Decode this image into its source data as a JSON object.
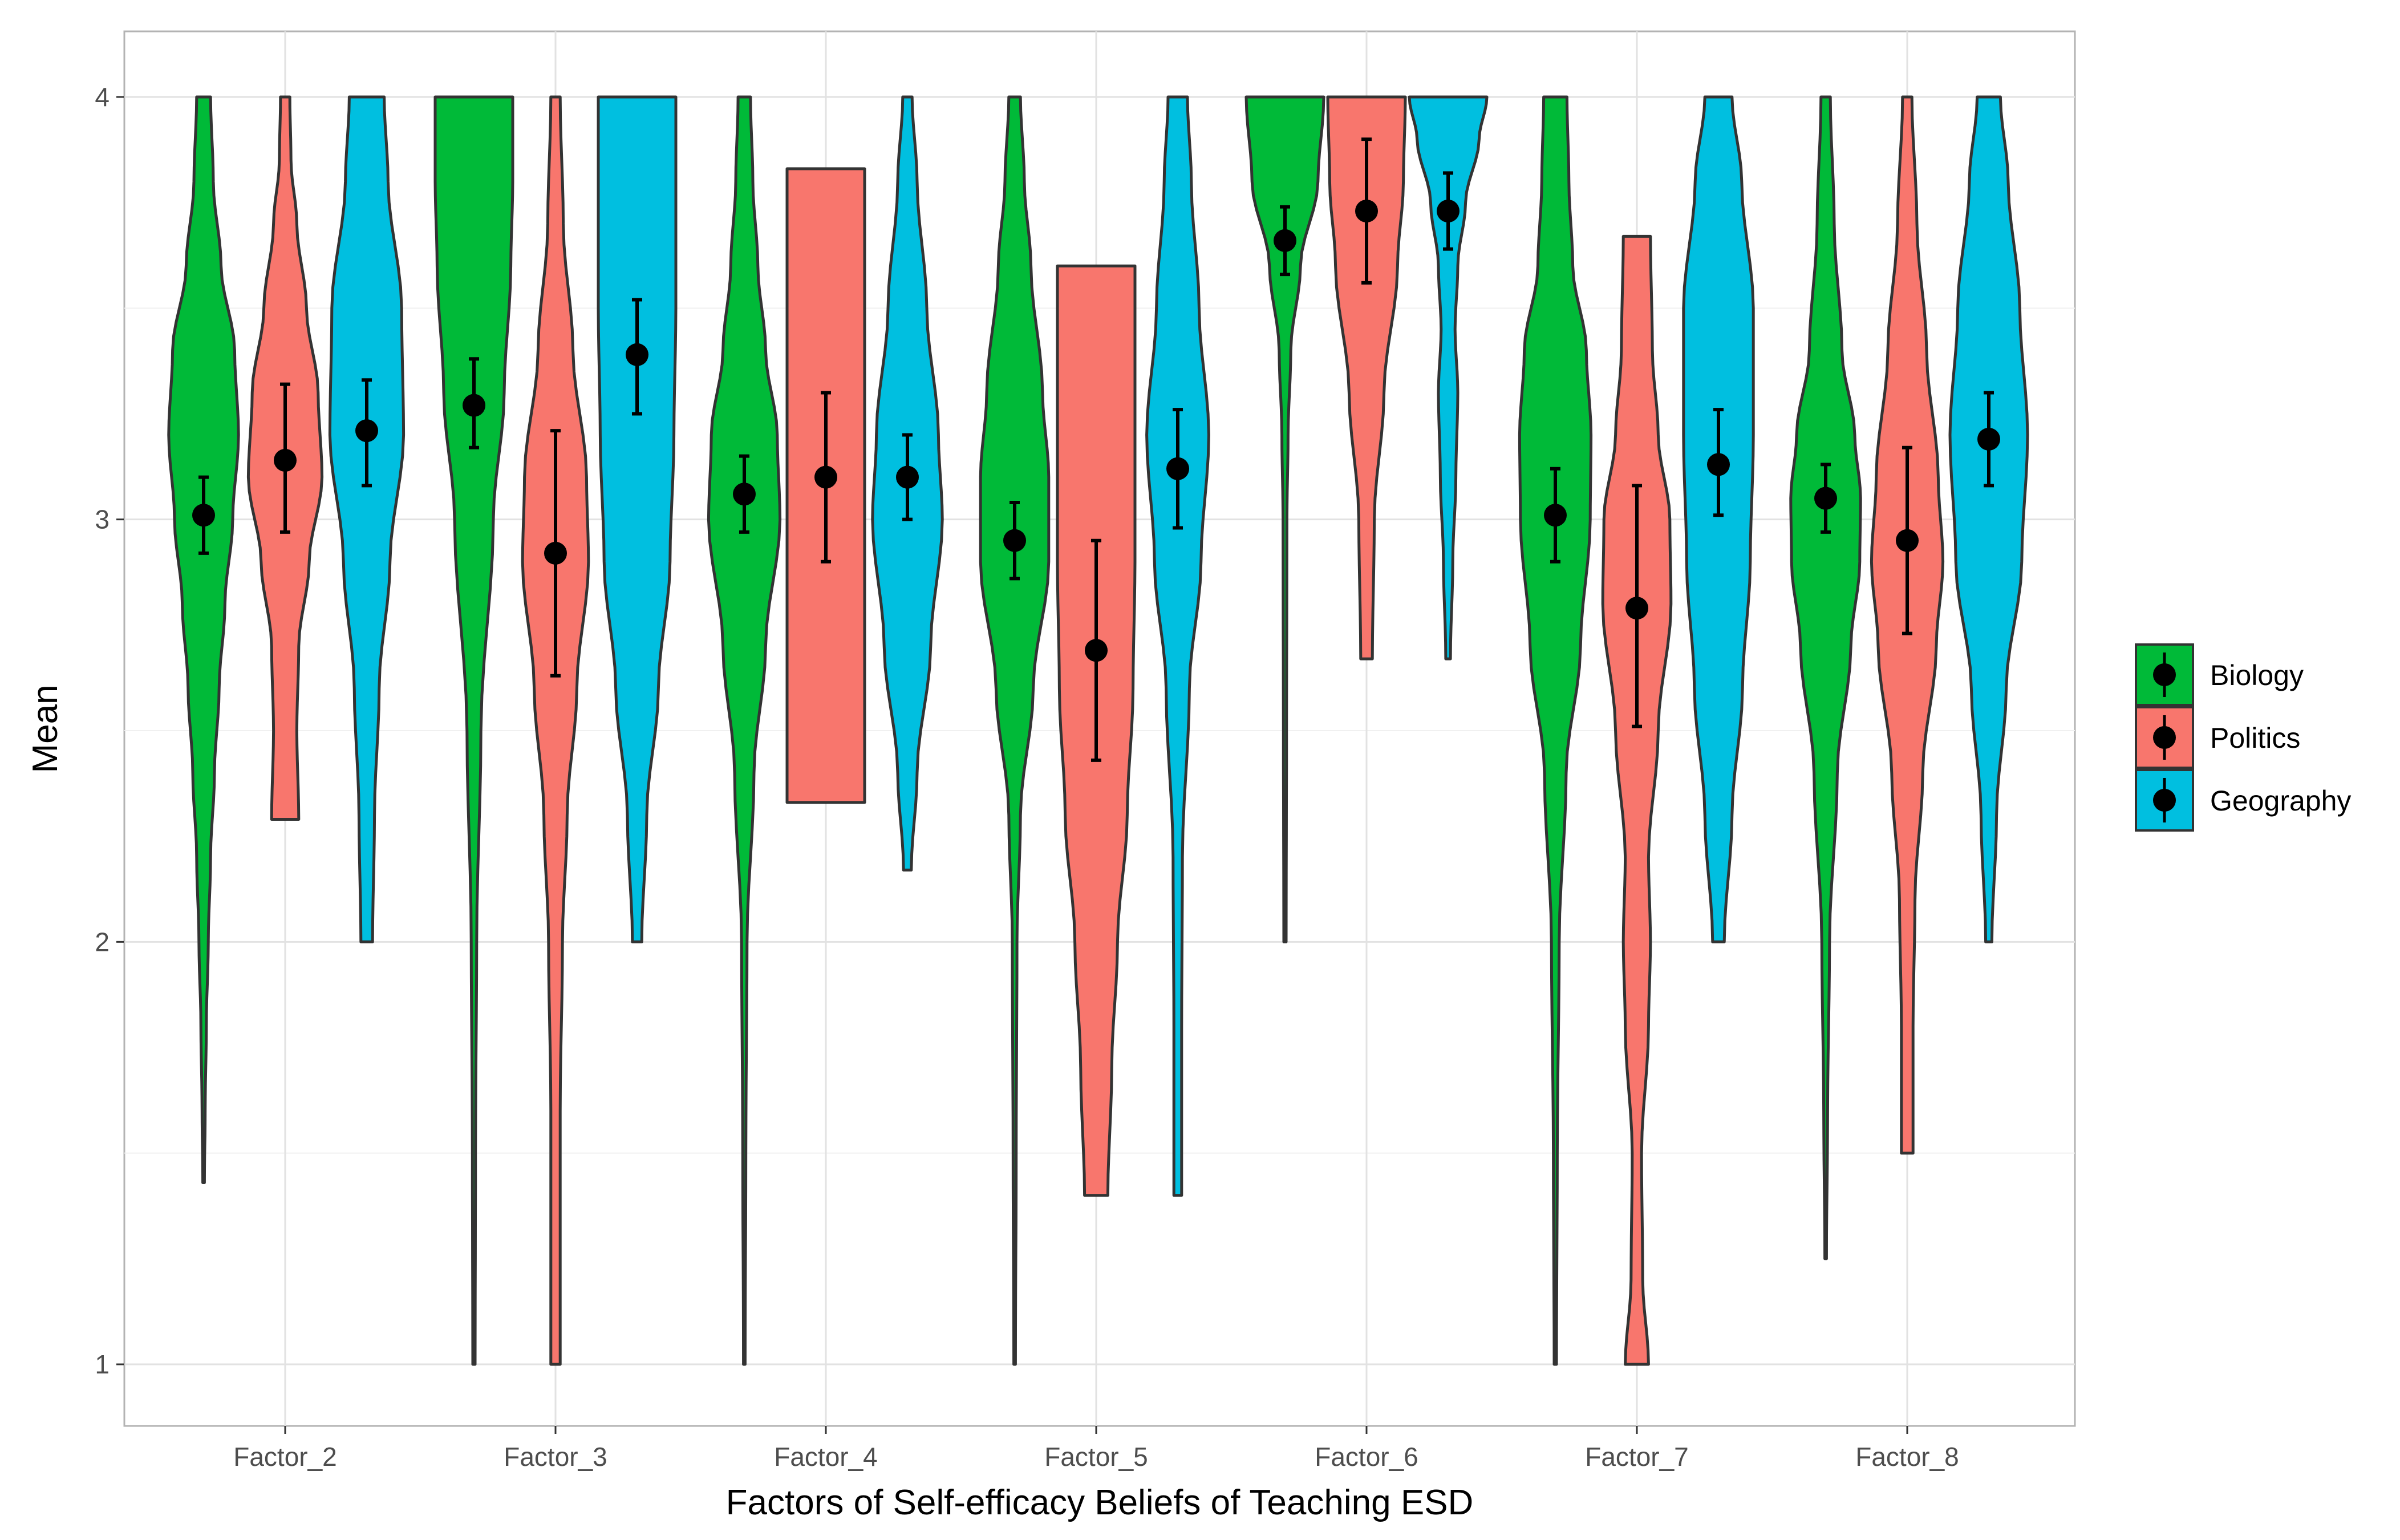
{
  "chart_data": {
    "type": "violin",
    "xlabel": "Factors of Self-efficacy Beliefs of Teaching ESD",
    "ylabel": "Mean",
    "ylim": [
      0.85,
      4.15
    ],
    "yticks": [
      1,
      2,
      3,
      4
    ],
    "categories": [
      "Factor_2",
      "Factor_3",
      "Factor_4",
      "Factor_5",
      "Factor_6",
      "Factor_7",
      "Factor_8"
    ],
    "grid": true,
    "legend_position": "right",
    "series": [
      {
        "name": "Biology",
        "color": "#00BA38",
        "mean": [
          3.01,
          3.27,
          3.06,
          2.95,
          3.66,
          3.01,
          3.05
        ],
        "ci_low": [
          2.92,
          3.17,
          2.97,
          2.86,
          3.58,
          2.9,
          2.97
        ],
        "ci_high": [
          3.1,
          3.38,
          3.15,
          3.04,
          3.74,
          3.12,
          3.13
        ],
        "min": [
          1.43,
          1.0,
          1.0,
          1.0,
          2.0,
          1.0,
          1.25
        ],
        "max": [
          4.0,
          4.0,
          4.0,
          4.0,
          4.0,
          4.0,
          4.0
        ],
        "violins": [
          [
            [
              1.43,
              0.02
            ],
            [
              1.6,
              0.04
            ],
            [
              1.8,
              0.07
            ],
            [
              2.0,
              0.12
            ],
            [
              2.2,
              0.18
            ],
            [
              2.4,
              0.28
            ],
            [
              2.6,
              0.4
            ],
            [
              2.8,
              0.55
            ],
            [
              3.0,
              0.75
            ],
            [
              3.2,
              0.9
            ],
            [
              3.4,
              0.8
            ],
            [
              3.6,
              0.45
            ],
            [
              3.8,
              0.25
            ],
            [
              4.0,
              0.18
            ]
          ],
          [
            [
              1.0,
              0.03
            ],
            [
              1.5,
              0.04
            ],
            [
              2.0,
              0.07
            ],
            [
              2.5,
              0.18
            ],
            [
              3.0,
              0.5
            ],
            [
              3.3,
              0.78
            ],
            [
              3.6,
              0.95
            ],
            [
              3.8,
              1.0
            ],
            [
              4.0,
              1.0
            ]
          ],
          [
            [
              1.0,
              0.02
            ],
            [
              1.5,
              0.04
            ],
            [
              2.0,
              0.07
            ],
            [
              2.4,
              0.25
            ],
            [
              2.7,
              0.55
            ],
            [
              3.0,
              0.92
            ],
            [
              3.2,
              0.85
            ],
            [
              3.4,
              0.55
            ],
            [
              3.6,
              0.35
            ],
            [
              3.8,
              0.22
            ],
            [
              4.0,
              0.16
            ]
          ],
          [
            [
              1.0,
              0.02
            ],
            [
              1.5,
              0.04
            ],
            [
              2.0,
              0.06
            ],
            [
              2.3,
              0.15
            ],
            [
              2.6,
              0.48
            ],
            [
              2.9,
              0.88
            ],
            [
              3.1,
              0.88
            ],
            [
              3.3,
              0.72
            ],
            [
              3.6,
              0.42
            ],
            [
              3.8,
              0.25
            ],
            [
              4.0,
              0.15
            ]
          ],
          [
            [
              2.0,
              0.03
            ],
            [
              2.5,
              0.04
            ],
            [
              3.0,
              0.05
            ],
            [
              3.2,
              0.08
            ],
            [
              3.4,
              0.15
            ],
            [
              3.6,
              0.4
            ],
            [
              3.8,
              0.85
            ],
            [
              4.0,
              1.0
            ]
          ],
          [
            [
              1.0,
              0.03
            ],
            [
              1.5,
              0.05
            ],
            [
              2.0,
              0.1
            ],
            [
              2.4,
              0.28
            ],
            [
              2.7,
              0.65
            ],
            [
              3.0,
              0.9
            ],
            [
              3.2,
              0.92
            ],
            [
              3.4,
              0.8
            ],
            [
              3.6,
              0.45
            ],
            [
              3.8,
              0.35
            ],
            [
              4.0,
              0.3
            ]
          ],
          [
            [
              1.25,
              0.02
            ],
            [
              1.6,
              0.05
            ],
            [
              2.0,
              0.1
            ],
            [
              2.4,
              0.3
            ],
            [
              2.7,
              0.65
            ],
            [
              2.9,
              0.88
            ],
            [
              3.05,
              0.9
            ],
            [
              3.2,
              0.75
            ],
            [
              3.4,
              0.42
            ],
            [
              3.7,
              0.22
            ],
            [
              4.0,
              0.12
            ]
          ]
        ]
      },
      {
        "name": "Politics",
        "color": "#F8766D",
        "mean": [
          3.14,
          2.92,
          3.1,
          2.69,
          3.73,
          2.79,
          2.95
        ],
        "ci_low": [
          2.97,
          2.63,
          2.9,
          2.43,
          3.56,
          2.51,
          2.73
        ],
        "ci_high": [
          3.32,
          3.21,
          3.3,
          2.95,
          3.9,
          3.08,
          3.17
        ],
        "min": [
          2.29,
          1.0,
          2.33,
          1.4,
          2.67,
          1.0,
          1.5
        ],
        "max": [
          4.0,
          4.0,
          3.83,
          3.6,
          4.0,
          3.67,
          4.0
        ],
        "violins": [
          [
            [
              2.29,
              0.35
            ],
            [
              2.5,
              0.3
            ],
            [
              2.7,
              0.35
            ],
            [
              2.9,
              0.62
            ],
            [
              3.1,
              0.95
            ],
            [
              3.3,
              0.85
            ],
            [
              3.5,
              0.55
            ],
            [
              3.7,
              0.3
            ],
            [
              3.85,
              0.15
            ],
            [
              4.0,
              0.12
            ]
          ],
          [
            [
              1.0,
              0.12
            ],
            [
              1.3,
              0.12
            ],
            [
              1.6,
              0.12
            ],
            [
              2.0,
              0.18
            ],
            [
              2.3,
              0.3
            ],
            [
              2.6,
              0.55
            ],
            [
              2.9,
              0.85
            ],
            [
              3.1,
              0.8
            ],
            [
              3.4,
              0.45
            ],
            [
              3.7,
              0.2
            ],
            [
              4.0,
              0.12
            ]
          ],
          [
            [
              2.33,
              1.0
            ],
            [
              2.6,
              1.0
            ],
            [
              3.0,
              1.0
            ],
            [
              3.4,
              1.0
            ],
            [
              3.83,
              1.0
            ]
          ],
          [
            [
              1.4,
              0.3
            ],
            [
              1.7,
              0.4
            ],
            [
              2.0,
              0.55
            ],
            [
              2.3,
              0.8
            ],
            [
              2.6,
              0.95
            ],
            [
              2.9,
              1.0
            ],
            [
              3.2,
              1.0
            ],
            [
              3.6,
              1.0
            ]
          ],
          [
            [
              2.67,
              0.15
            ],
            [
              3.0,
              0.2
            ],
            [
              3.3,
              0.45
            ],
            [
              3.6,
              0.8
            ],
            [
              3.8,
              0.95
            ],
            [
              4.0,
              1.0
            ]
          ],
          [
            [
              1.0,
              0.3
            ],
            [
              1.2,
              0.15
            ],
            [
              1.5,
              0.12
            ],
            [
              1.8,
              0.3
            ],
            [
              2.0,
              0.35
            ],
            [
              2.2,
              0.3
            ],
            [
              2.5,
              0.55
            ],
            [
              2.8,
              0.88
            ],
            [
              3.0,
              0.85
            ],
            [
              3.2,
              0.55
            ],
            [
              3.4,
              0.4
            ],
            [
              3.67,
              0.35
            ]
          ],
          [
            [
              1.5,
              0.15
            ],
            [
              1.8,
              0.15
            ],
            [
              2.1,
              0.2
            ],
            [
              2.4,
              0.4
            ],
            [
              2.7,
              0.75
            ],
            [
              2.9,
              0.92
            ],
            [
              3.1,
              0.8
            ],
            [
              3.4,
              0.5
            ],
            [
              3.7,
              0.25
            ],
            [
              4.0,
              0.12
            ]
          ]
        ]
      },
      {
        "name": "Geography",
        "color": "#00BFE0",
        "mean": [
          3.21,
          3.39,
          3.1,
          3.12,
          3.73,
          3.13,
          3.19
        ],
        "ci_low": [
          3.08,
          3.25,
          3.0,
          2.98,
          3.64,
          3.01,
          3.08
        ],
        "ci_high": [
          3.33,
          3.52,
          3.2,
          3.26,
          3.82,
          3.26,
          3.3
        ],
        "min": [
          2.0,
          2.0,
          2.17,
          1.4,
          2.67,
          2.0,
          2.0
        ],
        "max": [
          4.0,
          4.0,
          4.0,
          4.0,
          4.0,
          4.0,
          4.0
        ],
        "violins": [
          [
            [
              2.0,
              0.15
            ],
            [
              2.3,
              0.2
            ],
            [
              2.6,
              0.32
            ],
            [
              2.9,
              0.6
            ],
            [
              3.2,
              0.95
            ],
            [
              3.5,
              0.9
            ],
            [
              3.8,
              0.55
            ],
            [
              4.0,
              0.45
            ]
          ],
          [
            [
              2.0,
              0.12
            ],
            [
              2.3,
              0.25
            ],
            [
              2.6,
              0.55
            ],
            [
              2.9,
              0.85
            ],
            [
              3.2,
              0.95
            ],
            [
              3.5,
              1.0
            ],
            [
              3.8,
              1.0
            ],
            [
              4.0,
              1.0
            ]
          ],
          [
            [
              2.17,
              0.1
            ],
            [
              2.4,
              0.25
            ],
            [
              2.7,
              0.6
            ],
            [
              3.0,
              0.9
            ],
            [
              3.2,
              0.8
            ],
            [
              3.5,
              0.5
            ],
            [
              3.8,
              0.25
            ],
            [
              4.0,
              0.12
            ]
          ],
          [
            [
              1.4,
              0.1
            ],
            [
              1.8,
              0.1
            ],
            [
              2.2,
              0.12
            ],
            [
              2.6,
              0.3
            ],
            [
              2.9,
              0.6
            ],
            [
              3.2,
              0.8
            ],
            [
              3.5,
              0.55
            ],
            [
              3.8,
              0.35
            ],
            [
              4.0,
              0.25
            ]
          ],
          [
            [
              2.67,
              0.06
            ],
            [
              2.9,
              0.12
            ],
            [
              3.1,
              0.2
            ],
            [
              3.3,
              0.25
            ],
            [
              3.45,
              0.18
            ],
            [
              3.6,
              0.25
            ],
            [
              3.75,
              0.45
            ],
            [
              3.9,
              0.8
            ],
            [
              4.0,
              1.0
            ]
          ],
          [
            [
              2.0,
              0.15
            ],
            [
              2.3,
              0.35
            ],
            [
              2.6,
              0.62
            ],
            [
              2.9,
              0.82
            ],
            [
              3.2,
              0.9
            ],
            [
              3.5,
              0.9
            ],
            [
              3.8,
              0.6
            ],
            [
              4.0,
              0.35
            ]
          ],
          [
            [
              2.0,
              0.08
            ],
            [
              2.3,
              0.2
            ],
            [
              2.6,
              0.45
            ],
            [
              2.9,
              0.85
            ],
            [
              3.2,
              1.0
            ],
            [
              3.5,
              0.8
            ],
            [
              3.8,
              0.5
            ],
            [
              4.0,
              0.3
            ]
          ]
        ]
      }
    ]
  }
}
